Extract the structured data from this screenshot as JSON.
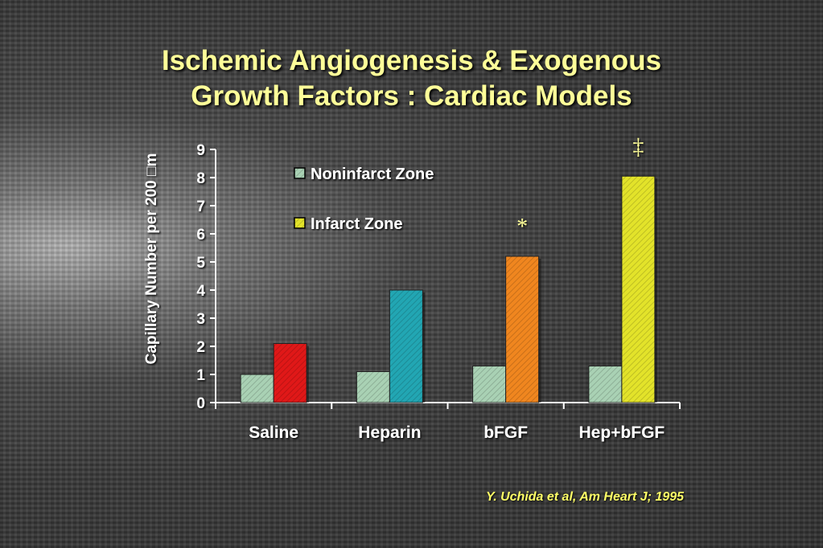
{
  "slide": {
    "title_line1": "Ischemic Angiogenesis & Exogenous",
    "title_line2": "Growth Factors : Cardiac Models",
    "citation": "Y. Uchida et al, Am Heart J; 1995"
  },
  "colors": {
    "title": "#ffff99",
    "citation": "#ffff66",
    "text": "#ffffff"
  },
  "chart_data": {
    "type": "bar",
    "title": "",
    "xlabel": "",
    "ylabel": "Capillary Number per 200 □m",
    "ylim": [
      0,
      9
    ],
    "yticks": [
      0,
      1,
      2,
      3,
      4,
      5,
      6,
      7,
      8,
      9
    ],
    "categories": [
      "Saline",
      "Heparin",
      "bFGF",
      "Hep+bFGF"
    ],
    "series": [
      {
        "name": "Noninfarct Zone",
        "values": [
          1.0,
          1.1,
          1.3,
          1.3
        ],
        "colors": [
          "#a9d1b4",
          "#a9d1b4",
          "#a9d1b4",
          "#a9d1b4"
        ]
      },
      {
        "name": "Infarct Zone",
        "values": [
          2.1,
          4.0,
          5.2,
          8.05
        ],
        "colors": [
          "#e01818",
          "#22a6b3",
          "#f0861f",
          "#e3e32a"
        ]
      }
    ],
    "legend": {
      "position": "top-left",
      "entries": [
        {
          "label": "Noninfarct Zone",
          "color": "#a9d1b4"
        },
        {
          "label": "Infarct Zone",
          "color": "#e3e32a"
        }
      ]
    },
    "annotations": [
      {
        "category": "bFGF",
        "series": "Infarct Zone",
        "text": "*"
      },
      {
        "category": "Hep+bFGF",
        "series": "Infarct Zone",
        "text": "‡"
      }
    ],
    "grid": false
  }
}
